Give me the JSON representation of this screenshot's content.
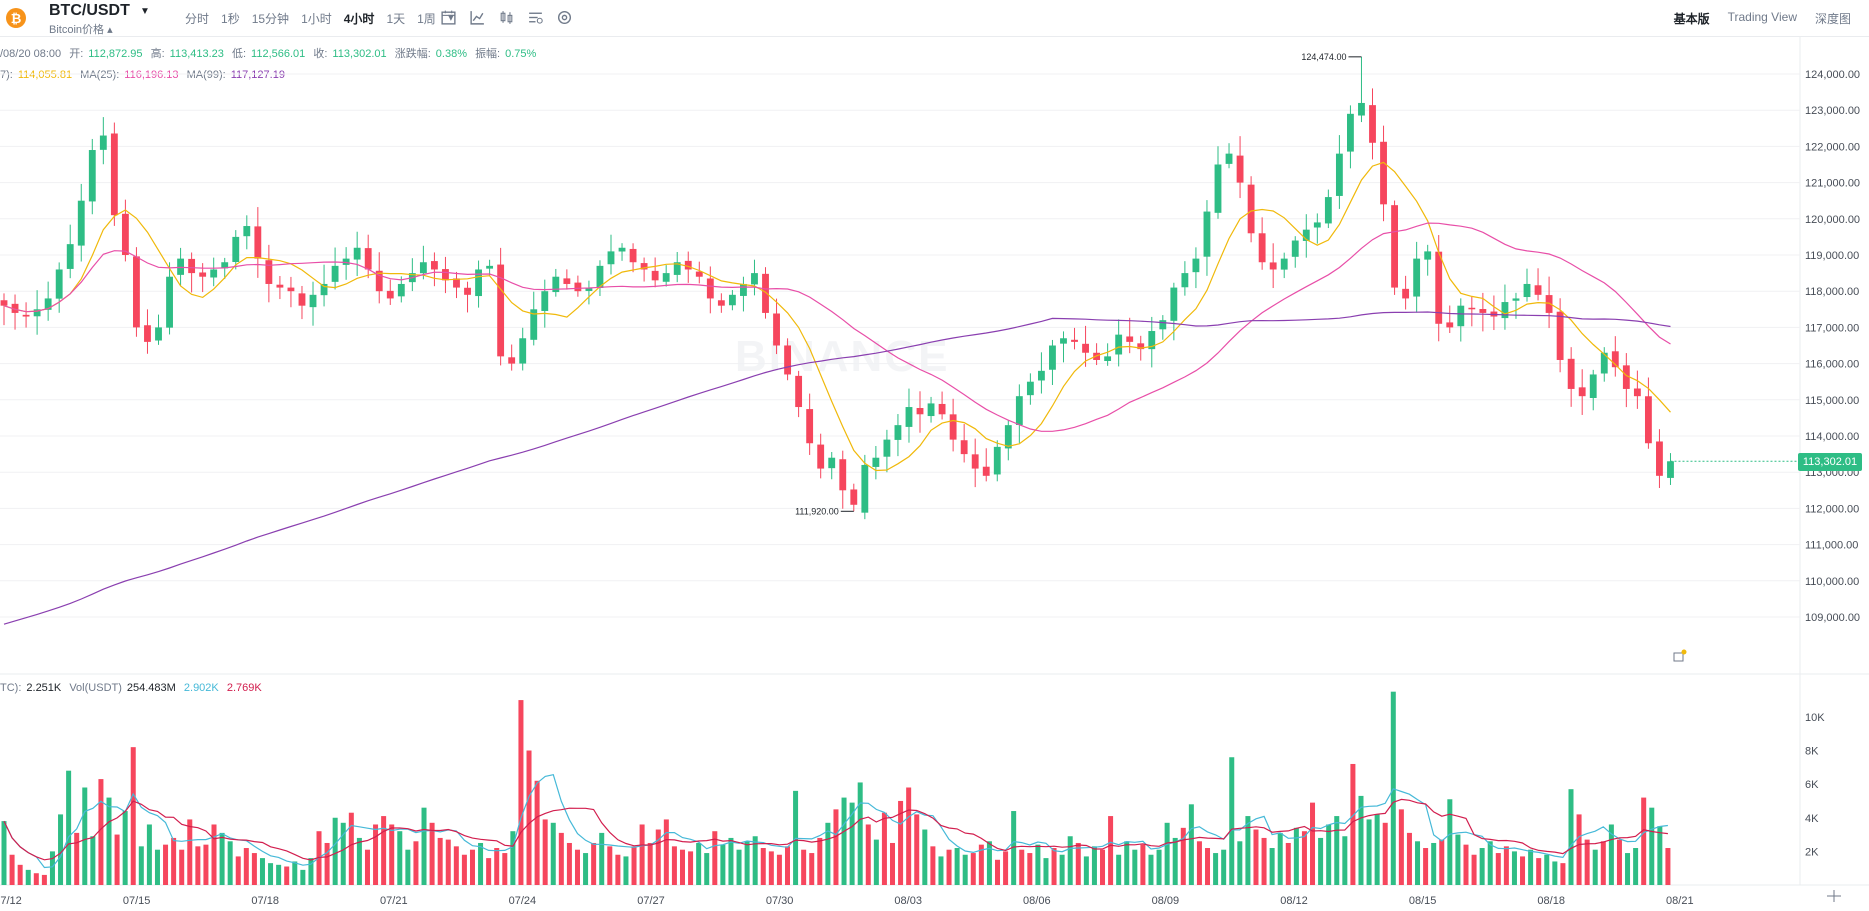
{
  "header": {
    "coin_icon": "bitcoin-icon",
    "pair": "BTC/USDT",
    "subtitle": "Bitcoin价格",
    "subtitle_suffix": "▴",
    "intervals": [
      "分时",
      "1秒",
      "15分钟",
      "1小时",
      "4小时",
      "1天",
      "1周"
    ],
    "active_interval": "4小时",
    "more": "▾",
    "tool_icons": [
      "calendar-icon",
      "line-chart-icon",
      "candlestick-icon",
      "indicator-icon",
      "settings-icon"
    ],
    "views": [
      "基本版",
      "Trading View",
      "深度图"
    ],
    "active_view": "基本版"
  },
  "ohlc": {
    "date": "/08/20 08:00",
    "open_label": "开:",
    "open": "112,872.95",
    "high_label": "高:",
    "high": "113,413.23",
    "low_label": "低:",
    "low": "112,566.01",
    "close_label": "收:",
    "close": "113,302.01",
    "change_label": "涨跌幅:",
    "change": "0.38%",
    "amp_label": "振幅:",
    "amp": "0.75%"
  },
  "ma": {
    "ma7_label": "7):",
    "ma7": "114,055.81",
    "ma25_label": "MA(25):",
    "ma25": "116,196.13",
    "ma99_label": "MA(99):",
    "ma99": "117,127.19"
  },
  "vol": {
    "btc_label": "TC):",
    "btc": "2.251K",
    "usdt_label": "Vol(USDT)",
    "usdt": "254.483M",
    "ma1": "2.902K",
    "ma2": "2.769K"
  },
  "colors": {
    "up": "#2ebd85",
    "down": "#f6465d",
    "ma7": "#f0b90b",
    "ma25": "#e84fa8",
    "ma99": "#8a3fb0",
    "vol_ma1": "#46b9d8",
    "vol_ma2": "#d21e4e",
    "coin": "#f7931a",
    "grid": "#f0f1f3",
    "axis_text": "#474d57"
  },
  "watermark": "BINANCE",
  "last_price": "113,302.01",
  "high_marker": "124,474.00",
  "low_marker": "111,920.00",
  "chart_data": {
    "type": "candlestick",
    "price_ticks": [
      109000,
      110000,
      111000,
      112000,
      113000,
      114000,
      115000,
      116000,
      117000,
      118000,
      119000,
      120000,
      121000,
      122000,
      123000,
      124000
    ],
    "price_tick_labels": [
      "109,000.00",
      "110,000.00",
      "111,000.00",
      "112,000.00",
      "113,000.00",
      "114,000.00",
      "115,000.00",
      "116,000.00",
      "117,000.00",
      "118,000.00",
      "119,000.00",
      "120,000.00",
      "121,000.00",
      "122,000.00",
      "123,000.00",
      "124,000.00"
    ],
    "volume_ticks": [
      2000,
      4000,
      6000,
      8000,
      10000
    ],
    "volume_tick_labels": [
      "2K",
      "4K",
      "6K",
      "8K",
      "10K"
    ],
    "dates": [
      "07/12",
      "07/15",
      "07/18",
      "07/21",
      "07/24",
      "07/27",
      "07/30",
      "08/03",
      "08/06",
      "08/09",
      "08/12",
      "08/15",
      "08/18",
      "08/21"
    ],
    "close_path": [
      117600,
      117400,
      117300,
      117500,
      117800,
      118600,
      119300,
      120500,
      121900,
      122300,
      120100,
      119000,
      117000,
      116600,
      117000,
      118400,
      118900,
      118500,
      118400,
      118600,
      118800,
      119500,
      119800,
      118900,
      118200,
      118100,
      118000,
      117600,
      117900,
      118200,
      118700,
      118900,
      119200,
      118600,
      118000,
      117800,
      118200,
      118500,
      118800,
      118600,
      118300,
      118100,
      117900,
      118600,
      118700,
      116200,
      116000,
      116700,
      117500,
      118000,
      118400,
      118200,
      118000,
      118100,
      118700,
      119100,
      119200,
      118800,
      118600,
      118300,
      118500,
      118800,
      118600,
      118400,
      117800,
      117600,
      117900,
      118200,
      118500,
      117400,
      116500,
      115700,
      114800,
      113800,
      113100,
      113400,
      112500,
      111920,
      113200,
      113400,
      113900,
      114300,
      114800,
      114600,
      114900,
      114600,
      113900,
      113500,
      113100,
      112900,
      113700,
      114300,
      115100,
      115500,
      115800,
      116500,
      116700,
      116600,
      116300,
      116100,
      116200,
      116800,
      116600,
      116400,
      116900,
      117200,
      118100,
      118500,
      118900,
      120200,
      121500,
      121800,
      121000,
      119600,
      118800,
      118600,
      118900,
      119400,
      119700,
      119900,
      120600,
      121800,
      122900,
      123200,
      122100,
      120400,
      118100,
      117800,
      118900,
      119100,
      117100,
      117000,
      117600,
      117500,
      117400,
      117300,
      117700,
      117800,
      118200,
      117900,
      117400,
      116100,
      115300,
      115100,
      115700,
      116300,
      115900,
      115300,
      115100,
      113800,
      112900,
      113302
    ],
    "volumes": [
      3800,
      1800,
      1200,
      900,
      700,
      600,
      2000,
      4200,
      6800,
      3100,
      5800,
      2900,
      6300,
      5200,
      3000,
      4400,
      8200,
      2300,
      3600,
      2100,
      2400,
      2800,
      2100,
      3900,
      2300,
      2400,
      3600,
      3100,
      2600,
      1700,
      2200,
      1900,
      1600,
      1300,
      1200,
      1100,
      1400,
      900,
      1600,
      3200,
      2500,
      4000,
      3700,
      4300,
      2800,
      2100,
      3600,
      4100,
      3600,
      3200,
      2100,
      2600,
      4600,
      3700,
      2800,
      2700,
      2300,
      1800,
      2100,
      2500,
      1600,
      2200,
      1900,
      3200,
      11000,
      8000,
      6200,
      3900,
      3700,
      3100,
      2500,
      2100,
      1900,
      2500,
      3100,
      2300,
      1800,
      1700,
      2300,
      3600,
      2500,
      3300,
      3900,
      2300,
      2100,
      2000,
      2500,
      1900,
      3200,
      2400,
      2800,
      2100,
      2600,
      2900,
      2200,
      2000,
      1800,
      2300,
      5600,
      2100,
      1900,
      2800,
      3700,
      4500,
      5200,
      4900,
      6100,
      3600,
      2700,
      4300,
      2500,
      5000,
      5800,
      4200,
      3300,
      2300,
      1700,
      2100,
      2200,
      1800,
      1900,
      2400,
      2600,
      1500,
      2000,
      4400,
      2100,
      1900,
      2400,
      1600,
      2200,
      1800,
      2900,
      2500,
      1700,
      2300,
      2100,
      4100,
      1800,
      2600,
      2100,
      2400,
      1800,
      2100,
      3700,
      2800,
      3400,
      4800,
      2600,
      2200,
      1900,
      2100,
      7600,
      2600,
      4100,
      3300,
      2800,
      2200,
      3100,
      2500,
      3400,
      3200,
      4900,
      2800,
      3600,
      4100,
      2900,
      7200,
      5300,
      3900,
      4200,
      3700,
      11500,
      4500,
      3100,
      2600,
      2200,
      2500,
      2700,
      5100,
      3000,
      2400,
      1800,
      2200,
      2600,
      1900,
      2300,
      2000,
      1700,
      2100,
      1600,
      1800,
      1400,
      1300,
      5700,
      4200,
      2700,
      2100,
      2600,
      3600,
      2700,
      1900,
      2200,
      5200,
      4600,
      3500,
      2200
    ],
    "price_min": 108000,
    "price_max": 124800,
    "x_axis": "date",
    "y_axis": "price (USDT)"
  }
}
